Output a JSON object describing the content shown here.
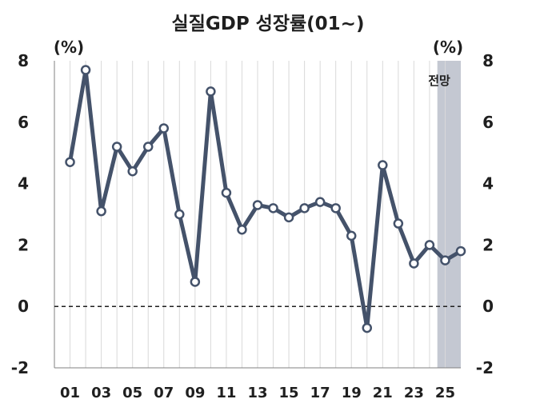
{
  "chart_data": {
    "type": "line",
    "title": "실질GDP 성장률(01~)",
    "ylabel_left": "(%)",
    "ylabel_right": "(%)",
    "forecast_label": "전망",
    "ylim": [
      -2,
      8
    ],
    "yticks": [
      "8",
      "6",
      "4",
      "2",
      "0",
      "-2"
    ],
    "y_tick_values": [
      8,
      6,
      4,
      2,
      0,
      -2
    ],
    "x_tick_labels": [
      "01",
      "03",
      "05",
      "07",
      "09",
      "11",
      "13",
      "15",
      "17",
      "19",
      "21",
      "23",
      "25"
    ],
    "x": [
      2001,
      2002,
      2003,
      2004,
      2005,
      2006,
      2007,
      2008,
      2009,
      2010,
      2011,
      2012,
      2013,
      2014,
      2015,
      2016,
      2017,
      2018,
      2019,
      2020,
      2021,
      2022,
      2023,
      2024,
      2025,
      2026
    ],
    "series": [
      {
        "values": [
          4.7,
          7.7,
          3.1,
          5.2,
          4.4,
          5.2,
          5.8,
          3.0,
          0.8,
          7.0,
          3.7,
          2.5,
          3.3,
          3.2,
          2.9,
          3.2,
          3.4,
          3.2,
          2.3,
          -0.7,
          4.6,
          2.7,
          1.4,
          2.0,
          1.5,
          1.8
        ]
      }
    ],
    "forecast_start": 2025,
    "forecast_end": 2026,
    "zero_line": "dashed",
    "grid": "vertical",
    "colors": {
      "line": "#44526a",
      "marker_fill": "#ffffff",
      "forecast_shade": "#c4c8d2",
      "grid": "#d9d9d9",
      "axis": "#808080",
      "zero_line": "#1f1f1f"
    }
  }
}
